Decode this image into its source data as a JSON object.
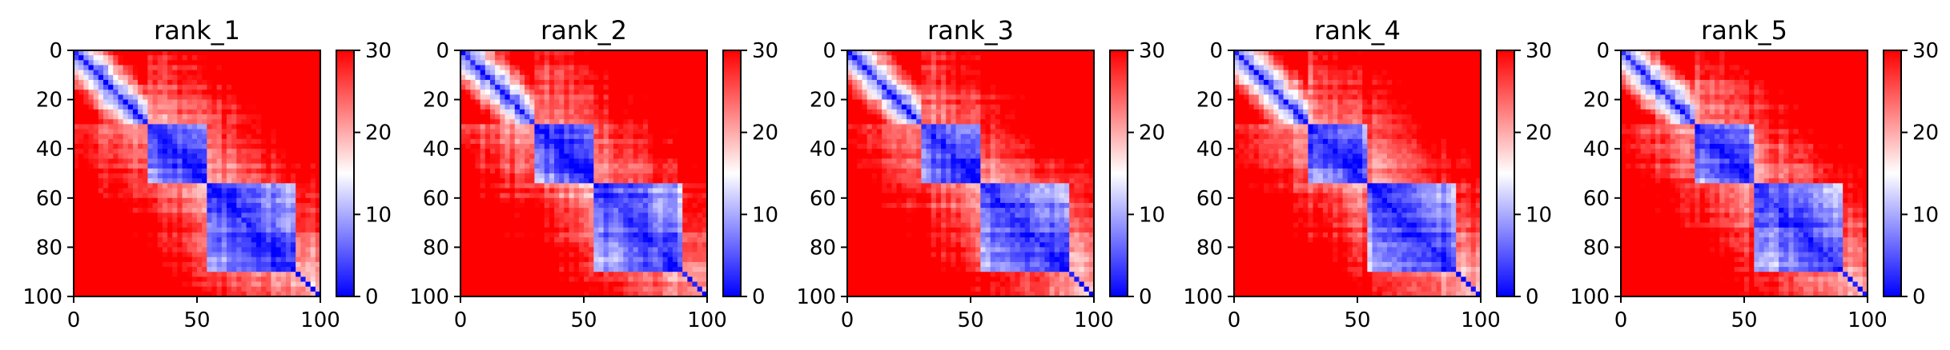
{
  "chart_data": [
    {
      "type": "heatmap",
      "title": "rank_1",
      "xlim": [
        0,
        100
      ],
      "ylim": [
        100,
        0
      ],
      "x_ticks": [
        "0",
        "50",
        "100"
      ],
      "y_ticks": [
        "0",
        "20",
        "40",
        "60",
        "80",
        "100"
      ],
      "colorbar": {
        "range": [
          0,
          30
        ],
        "ticks": [
          "0",
          "10",
          "20",
          "30"
        ],
        "colormap": "bwr"
      },
      "blocks": [
        [
          0,
          30
        ],
        [
          30,
          55
        ],
        [
          55,
          90
        ],
        [
          90,
          100
        ]
      ],
      "variant": 1
    },
    {
      "type": "heatmap",
      "title": "rank_2",
      "xlim": [
        0,
        100
      ],
      "ylim": [
        100,
        0
      ],
      "x_ticks": [
        "0",
        "50",
        "100"
      ],
      "y_ticks": [
        "0",
        "20",
        "40",
        "60",
        "80",
        "100"
      ],
      "colorbar": {
        "range": [
          0,
          30
        ],
        "ticks": [
          "0",
          "10",
          "20",
          "30"
        ],
        "colormap": "bwr"
      },
      "blocks": [
        [
          0,
          30
        ],
        [
          30,
          55
        ],
        [
          55,
          90
        ],
        [
          90,
          100
        ]
      ],
      "variant": 2
    },
    {
      "type": "heatmap",
      "title": "rank_3",
      "xlim": [
        0,
        100
      ],
      "ylim": [
        100,
        0
      ],
      "x_ticks": [
        "0",
        "50",
        "100"
      ],
      "y_ticks": [
        "0",
        "20",
        "40",
        "60",
        "80",
        "100"
      ],
      "colorbar": {
        "range": [
          0,
          30
        ],
        "ticks": [
          "0",
          "10",
          "20",
          "30"
        ],
        "colormap": "bwr"
      },
      "blocks": [
        [
          0,
          30
        ],
        [
          30,
          55
        ],
        [
          55,
          90
        ],
        [
          90,
          100
        ]
      ],
      "variant": 3
    },
    {
      "type": "heatmap",
      "title": "rank_4",
      "xlim": [
        0,
        100
      ],
      "ylim": [
        100,
        0
      ],
      "x_ticks": [
        "0",
        "50",
        "100"
      ],
      "y_ticks": [
        "0",
        "20",
        "40",
        "60",
        "80",
        "100"
      ],
      "colorbar": {
        "range": [
          0,
          30
        ],
        "ticks": [
          "0",
          "10",
          "20",
          "30"
        ],
        "colormap": "bwr"
      },
      "blocks": [
        [
          0,
          30
        ],
        [
          30,
          55
        ],
        [
          55,
          90
        ],
        [
          90,
          100
        ]
      ],
      "variant": 4
    },
    {
      "type": "heatmap",
      "title": "rank_5",
      "xlim": [
        0,
        100
      ],
      "ylim": [
        100,
        0
      ],
      "x_ticks": [
        "0",
        "50",
        "100"
      ],
      "y_ticks": [
        "0",
        "20",
        "40",
        "60",
        "80",
        "100"
      ],
      "colorbar": {
        "range": [
          0,
          30
        ],
        "ticks": [
          "0",
          "10",
          "20",
          "30"
        ],
        "colormap": "bwr"
      },
      "blocks": [
        [
          0,
          30
        ],
        [
          30,
          55
        ],
        [
          55,
          90
        ],
        [
          90,
          100
        ]
      ],
      "variant": 5
    }
  ],
  "colors": {
    "low": "#0000ff",
    "mid": "#ffffff",
    "high": "#ff0000"
  }
}
